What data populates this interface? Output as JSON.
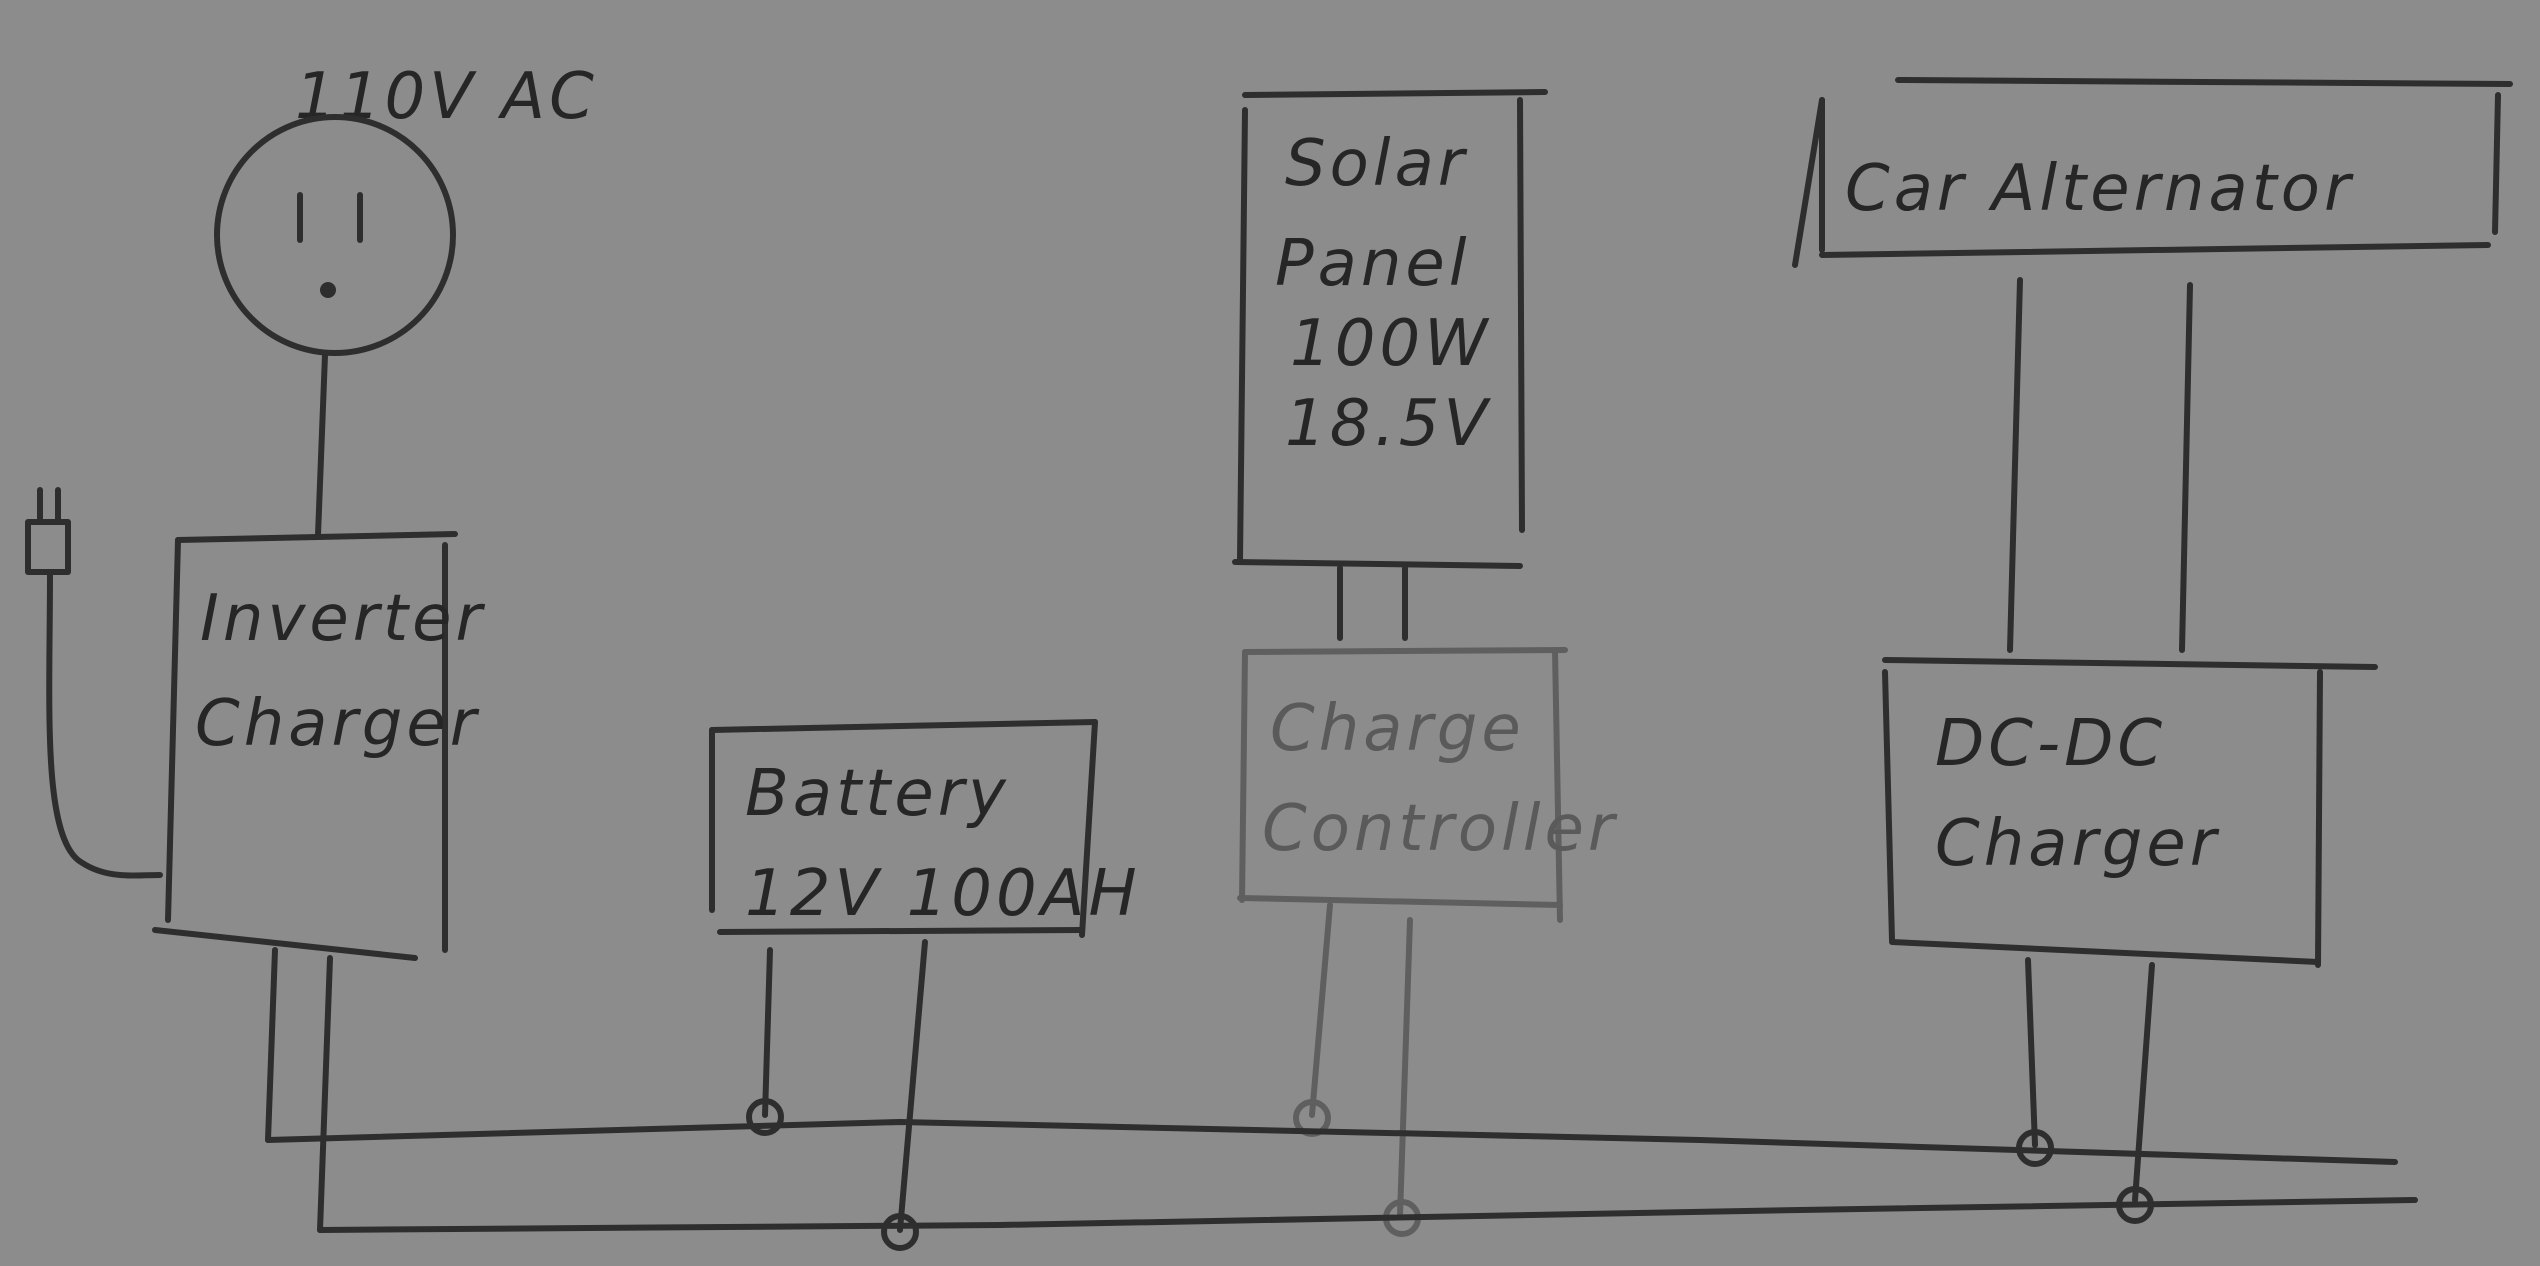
{
  "ac_source": {
    "label": "110V AC"
  },
  "inverter": {
    "line1": "Inverter",
    "line2": "Charger"
  },
  "battery": {
    "line1": "Battery",
    "line2": "12V 100AH"
  },
  "solar": {
    "line1": "Solar",
    "line2": "Panel",
    "line3": "100W",
    "line4": "18.5V"
  },
  "controller": {
    "line1": "Charge",
    "line2": "Controller"
  },
  "alternator": {
    "label": "Car Alternator"
  },
  "dcdc": {
    "line1": "DC-DC",
    "line2": "Charger"
  }
}
